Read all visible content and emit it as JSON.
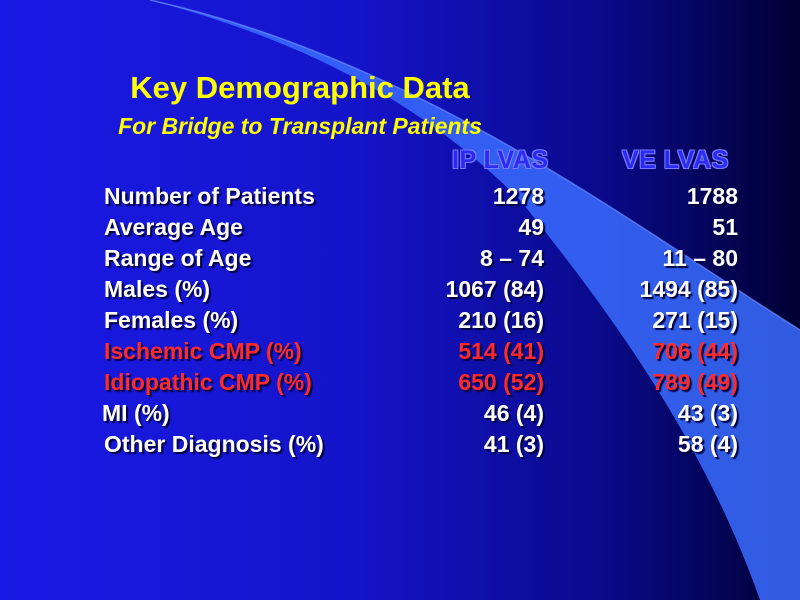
{
  "slide": {
    "title": "Key Demographic Data",
    "subtitle": "For Bridge to Transplant Patients",
    "colors": {
      "background": "#1414c8",
      "title": "#ffff00",
      "text": "#ffffff",
      "highlight": "#ff2a2a",
      "swoosh": "#3a6cff"
    }
  },
  "table": {
    "columns": [
      "IP LVAS",
      "VE LVAS"
    ],
    "rows": [
      {
        "label": "Number of Patients",
        "ip": "1278",
        "ve": "1788",
        "highlight": false
      },
      {
        "label": "Average Age",
        "ip": "49",
        "ve": "51",
        "highlight": false
      },
      {
        "label": "Range of Age",
        "ip": "8 – 74",
        "ve": "11 – 80",
        "highlight": false
      },
      {
        "label": "Males (%)",
        "ip": "1067 (84)",
        "ve": "1494 (85)",
        "highlight": false
      },
      {
        "label": "Females (%)",
        "ip": "210 (16)",
        "ve": "271 (15)",
        "highlight": false
      },
      {
        "label": "Ischemic CMP (%)",
        "ip": "514 (41)",
        "ve": "706 (44)",
        "highlight": true
      },
      {
        "label": "Idiopathic CMP (%)",
        "ip": "650 (52)",
        "ve": "789 (49)",
        "highlight": true
      },
      {
        "label": "MI (%)",
        "ip": "46 (4)",
        "ve": "43 (3)",
        "highlight": false
      },
      {
        "label": "Other Diagnosis (%)",
        "ip": "41 (3)",
        "ve": "58 (4)",
        "highlight": false
      }
    ]
  }
}
